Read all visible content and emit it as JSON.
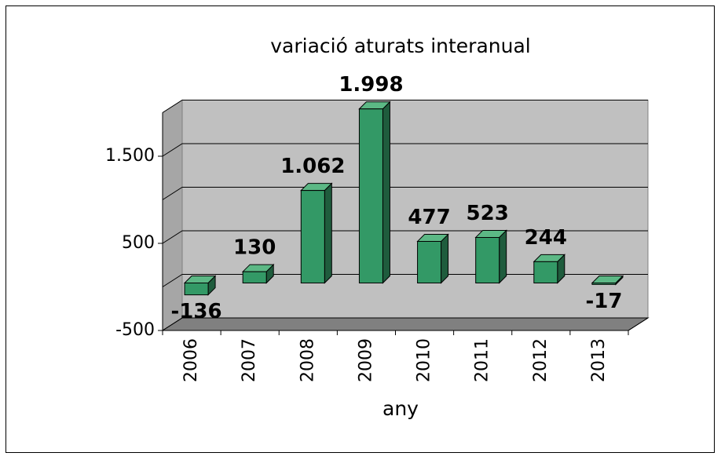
{
  "chart_data": {
    "type": "bar3d",
    "title": "variació aturats interanual",
    "x_label": "any",
    "categories": [
      "2006",
      "2007",
      "2008",
      "2009",
      "2010",
      "2011",
      "2012",
      "2013"
    ],
    "values": [
      -136,
      130,
      1062,
      1998,
      477,
      523,
      244,
      -17
    ],
    "value_labels": [
      "-136",
      "130",
      "1.062",
      "1.998",
      "477",
      "523",
      "244",
      "-17"
    ],
    "color": "#339966",
    "ylim": [
      -500,
      2000
    ],
    "yticks": [
      -500,
      500,
      {
        "value": 1500,
        "label": "1.500"
      }
    ],
    "gridlines": [
      -500,
      0,
      500,
      1000,
      1500,
      2000
    ]
  }
}
